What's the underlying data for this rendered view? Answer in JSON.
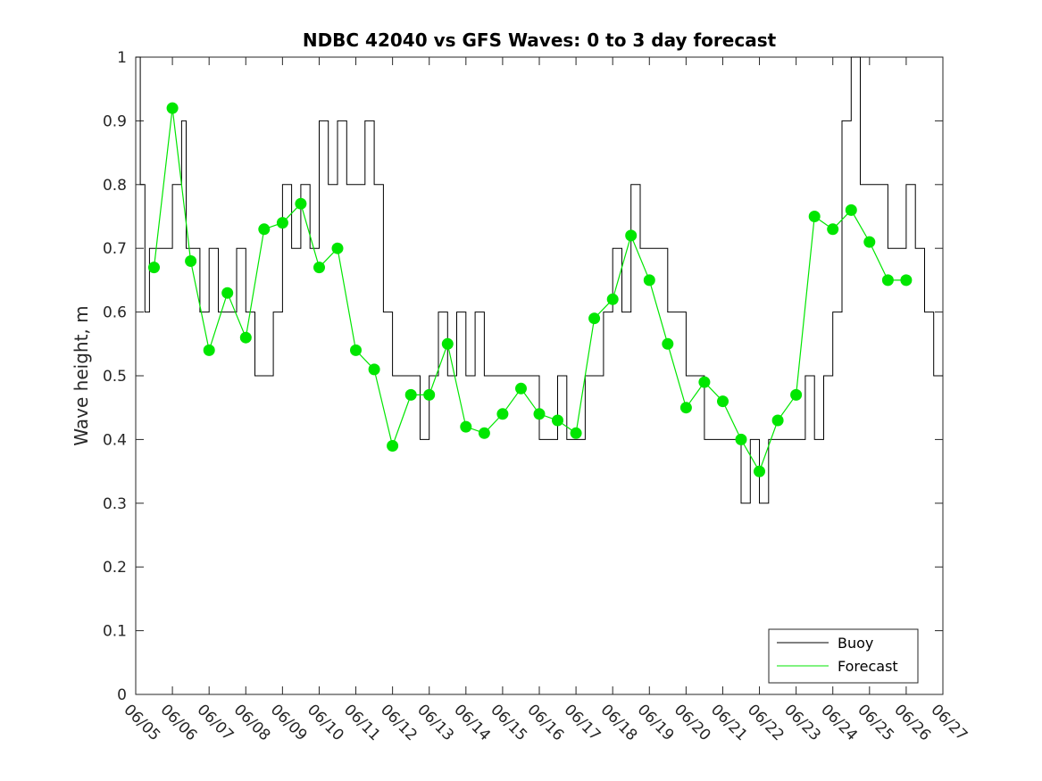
{
  "chart_data": {
    "type": "line",
    "title": "NDBC 42040 vs GFS Waves: 0 to 3 day forecast",
    "xlabel": "",
    "ylabel": "Wave height, m",
    "xlim": [
      "06/05",
      "06/27"
    ],
    "ylim": [
      0,
      1
    ],
    "yticks": [
      "0",
      "0.1",
      "0.2",
      "0.3",
      "0.4",
      "0.5",
      "0.6",
      "0.7",
      "0.8",
      "0.9",
      "1"
    ],
    "xticks": [
      "06/05",
      "06/06",
      "06/07",
      "06/08",
      "06/09",
      "06/10",
      "06/11",
      "06/12",
      "06/13",
      "06/14",
      "06/15",
      "06/16",
      "06/17",
      "06/18",
      "06/19",
      "06/20",
      "06/21",
      "06/22",
      "06/23",
      "06/24",
      "06/25",
      "06/26",
      "06/27"
    ],
    "grid": false,
    "legend": {
      "placement": "bottom-right",
      "entries": [
        "Buoy",
        "Forecast"
      ]
    },
    "colors": {
      "buoy": "#000000",
      "forecast": "#00e600"
    },
    "series": [
      {
        "name": "Buoy",
        "x": [
          "06/05 00:00",
          "06/05 03:00",
          "06/05 06:00",
          "06/05 09:00",
          "06/05 12:00",
          "06/05 15:00",
          "06/05 18:00",
          "06/06 00:00",
          "06/06 06:00",
          "06/06 09:00",
          "06/06 12:00",
          "06/06 18:00",
          "06/07 00:00",
          "06/07 06:00",
          "06/07 12:00",
          "06/07 18:00",
          "06/08 00:00",
          "06/08 06:00",
          "06/08 12:00",
          "06/08 18:00",
          "06/09 00:00",
          "06/09 06:00",
          "06/09 12:00",
          "06/09 18:00",
          "06/10 00:00",
          "06/10 06:00",
          "06/10 12:00",
          "06/10 18:00",
          "06/11 00:00",
          "06/11 06:00",
          "06/11 12:00",
          "06/11 18:00",
          "06/12 00:00",
          "06/12 06:00",
          "06/12 12:00",
          "06/12 18:00",
          "06/13 00:00",
          "06/13 06:00",
          "06/13 12:00",
          "06/13 18:00",
          "06/14 00:00",
          "06/14 06:00",
          "06/14 12:00",
          "06/14 18:00",
          "06/15 00:00",
          "06/15 06:00",
          "06/15 12:00",
          "06/15 18:00",
          "06/16 00:00",
          "06/16 06:00",
          "06/16 12:00",
          "06/16 18:00",
          "06/17 00:00",
          "06/17 06:00",
          "06/17 12:00",
          "06/17 18:00",
          "06/18 00:00",
          "06/18 06:00",
          "06/18 12:00",
          "06/18 18:00",
          "06/19 00:00",
          "06/19 06:00",
          "06/19 12:00",
          "06/19 18:00",
          "06/20 00:00",
          "06/20 06:00",
          "06/20 12:00",
          "06/20 18:00",
          "06/21 00:00",
          "06/21 06:00",
          "06/21 12:00",
          "06/21 18:00",
          "06/22 00:00",
          "06/22 06:00",
          "06/22 12:00",
          "06/22 18:00",
          "06/23 00:00",
          "06/23 06:00",
          "06/23 12:00",
          "06/23 18:00",
          "06/24 00:00",
          "06/24 06:00",
          "06/24 12:00",
          "06/24 18:00",
          "06/25 00:00",
          "06/25 06:00",
          "06/25 12:00",
          "06/25 18:00",
          "06/26 00:00",
          "06/26 06:00",
          "06/26 12:00",
          "06/26 18:00",
          "06/27 00:00"
        ],
        "y": [
          1.0,
          0.8,
          0.6,
          0.7,
          0.7,
          0.7,
          0.7,
          0.8,
          0.9,
          0.7,
          0.7,
          0.6,
          0.7,
          0.6,
          0.6,
          0.7,
          0.6,
          0.5,
          0.5,
          0.6,
          0.8,
          0.7,
          0.8,
          0.7,
          0.9,
          0.8,
          0.9,
          0.8,
          0.8,
          0.9,
          0.8,
          0.6,
          0.5,
          0.5,
          0.5,
          0.4,
          0.5,
          0.6,
          0.5,
          0.6,
          0.5,
          0.6,
          0.5,
          0.5,
          0.5,
          0.5,
          0.5,
          0.5,
          0.4,
          0.4,
          0.5,
          0.4,
          0.4,
          0.5,
          0.5,
          0.6,
          0.7,
          0.6,
          0.8,
          0.7,
          0.7,
          0.7,
          0.6,
          0.6,
          0.5,
          0.5,
          0.4,
          0.4,
          0.4,
          0.4,
          0.3,
          0.4,
          0.3,
          0.4,
          0.4,
          0.4,
          0.4,
          0.5,
          0.4,
          0.5,
          0.6,
          0.9,
          1.0,
          0.8,
          0.8,
          0.8,
          0.7,
          0.7,
          0.8,
          0.7,
          0.6,
          0.5,
          0.5
        ]
      },
      {
        "name": "Forecast",
        "x": [
          "06/05 12:00",
          "06/06 00:00",
          "06/06 12:00",
          "06/07 00:00",
          "06/07 12:00",
          "06/08 00:00",
          "06/08 12:00",
          "06/09 00:00",
          "06/09 12:00",
          "06/10 00:00",
          "06/10 12:00",
          "06/11 00:00",
          "06/11 12:00",
          "06/12 00:00",
          "06/12 12:00",
          "06/13 00:00",
          "06/13 12:00",
          "06/14 00:00",
          "06/14 12:00",
          "06/15 00:00",
          "06/15 12:00",
          "06/16 00:00",
          "06/16 12:00",
          "06/17 00:00",
          "06/17 12:00",
          "06/18 00:00",
          "06/18 12:00",
          "06/19 00:00",
          "06/19 12:00",
          "06/20 00:00",
          "06/20 12:00",
          "06/21 00:00",
          "06/21 12:00",
          "06/22 00:00",
          "06/22 12:00",
          "06/23 00:00",
          "06/23 12:00",
          "06/24 00:00",
          "06/24 12:00",
          "06/25 00:00",
          "06/25 12:00",
          "06/26 00:00"
        ],
        "y": [
          0.67,
          0.92,
          0.68,
          0.54,
          0.63,
          0.56,
          0.73,
          0.74,
          0.77,
          0.67,
          0.7,
          0.54,
          0.51,
          0.39,
          0.47,
          0.47,
          0.55,
          0.42,
          0.41,
          0.44,
          0.48,
          0.44,
          0.43,
          0.41,
          0.59,
          0.62,
          0.72,
          0.65,
          0.55,
          0.45,
          0.49,
          0.46,
          0.4,
          0.35,
          0.43,
          0.47,
          0.75,
          0.73,
          0.76,
          0.71,
          0.65,
          0.65
        ]
      }
    ]
  }
}
